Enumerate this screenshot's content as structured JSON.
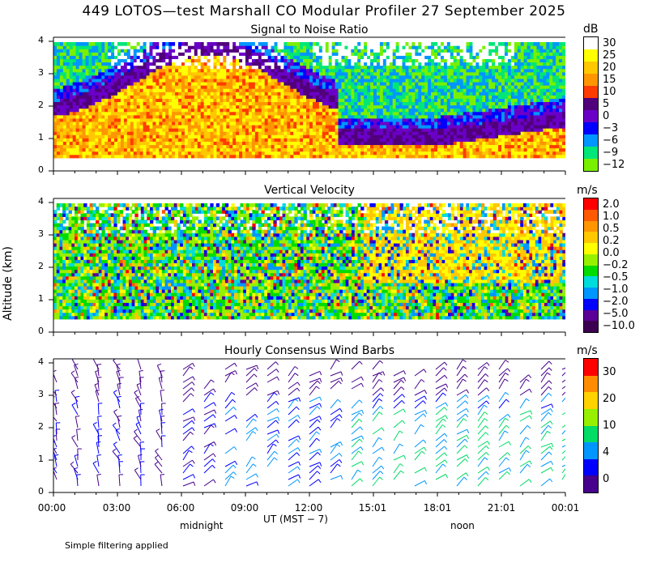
{
  "title": "449 LOTOS—test Marshall CO Modular Profiler 27 September 2025",
  "chart_data": [
    {
      "type": "heatmap",
      "title": "Signal to Noise Ratio",
      "unit": "dB",
      "ylabel": "Altitude (km)",
      "ylim": [
        0,
        4
      ],
      "yticks": [
        "0",
        "1",
        "2",
        "3",
        "4"
      ],
      "colorbar": {
        "labels": [
          "30",
          "25",
          "20",
          "15",
          "10",
          "5",
          "0",
          "−3",
          "−6",
          "−9",
          "−12"
        ],
        "colors": [
          "#ffffff",
          "#ffff00",
          "#ffc800",
          "#ff9600",
          "#ff3c00",
          "#50007a",
          "#6a00c8",
          "#0000ff",
          "#0096ff",
          "#00e678",
          "#78f000"
        ]
      }
    },
    {
      "type": "heatmap",
      "title": "Vertical Velocity",
      "unit": "m/s",
      "ylim": [
        0,
        4
      ],
      "yticks": [
        "0",
        "1",
        "2",
        "3",
        "4"
      ],
      "colorbar": {
        "labels": [
          "2.0",
          "1.0",
          "0.5",
          "0.2",
          "0.0",
          "−0.2",
          "−0.5",
          "−1.0",
          "−2.0",
          "−5.0",
          "−10.0"
        ],
        "colors": [
          "#ff0000",
          "#ff5a00",
          "#ff9600",
          "#ffc800",
          "#ffff00",
          "#96f000",
          "#00dc00",
          "#00dcdc",
          "#0096ff",
          "#0000ff",
          "#5a0096",
          "#3c0050"
        ]
      }
    },
    {
      "type": "scatter",
      "title": "Hourly Consensus Wind Barbs",
      "unit": "m/s",
      "ylim": [
        0,
        4
      ],
      "yticks": [
        "0",
        "1",
        "2",
        "3",
        "4"
      ],
      "colorbar": {
        "labels": [
          "30",
          "20",
          "10",
          "4",
          "0"
        ],
        "colors": [
          "#ff0000",
          "#ff8c00",
          "#ffd200",
          "#96f000",
          "#00dc64",
          "#0096ff",
          "#0000ff",
          "#46008c"
        ]
      }
    }
  ],
  "xaxis": {
    "label": "UT  (MST − 7)",
    "ticks": [
      "00:00",
      "03:00",
      "06:00",
      "09:00",
      "12:00",
      "15:01",
      "18:01",
      "21:01",
      "00:01"
    ],
    "sublabels": [
      "midnight",
      "noon"
    ]
  },
  "footnote": "Simple filtering applied"
}
